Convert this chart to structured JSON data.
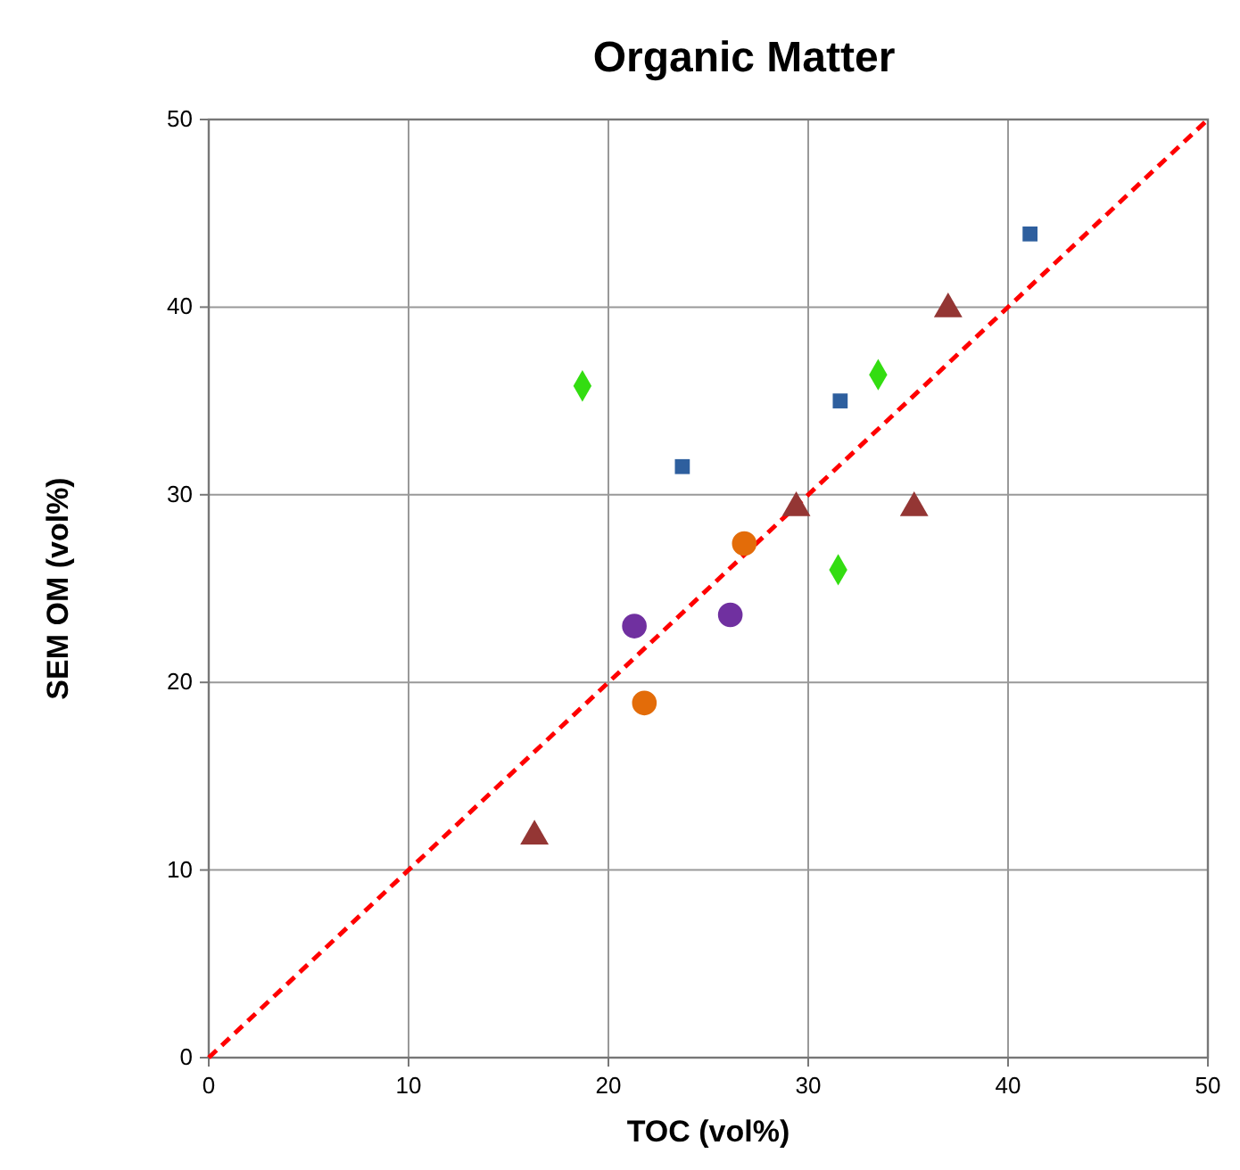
{
  "chart_data": {
    "type": "scatter",
    "title": "Organic Matter",
    "xlabel": "TOC (vol%)",
    "ylabel": "SEM OM (vol%)",
    "xlim": [
      0,
      50
    ],
    "ylim": [
      0,
      50
    ],
    "xticks": [
      0,
      10,
      20,
      30,
      40,
      50
    ],
    "yticks": [
      0,
      10,
      20,
      30,
      40,
      50
    ],
    "grid": true,
    "series": [
      {
        "type": "line",
        "x": [
          0,
          50
        ],
        "values": [
          0,
          50
        ],
        "color": "#ff0000",
        "line_style": "dashed",
        "marker": "none"
      },
      {
        "x": [
          41.1,
          31.6,
          23.7
        ],
        "values": [
          43.9,
          35.0,
          31.5
        ],
        "color": "#2e5f9e",
        "marker": "square"
      },
      {
        "x": [
          18.7,
          33.5,
          31.5
        ],
        "values": [
          35.8,
          36.4,
          26.0
        ],
        "color": "#33dd11",
        "marker": "diamond"
      },
      {
        "x": [
          16.3,
          29.4,
          35.3,
          37.0
        ],
        "values": [
          11.8,
          29.3,
          29.3,
          39.9
        ],
        "color": "#943634",
        "marker": "triangle"
      },
      {
        "x": [
          21.8,
          26.8
        ],
        "values": [
          18.9,
          27.4
        ],
        "color": "#e36c09",
        "marker": "circle"
      },
      {
        "x": [
          21.3,
          26.1
        ],
        "values": [
          23.0,
          23.6
        ],
        "color": "#7030a0",
        "marker": "circle"
      }
    ]
  }
}
